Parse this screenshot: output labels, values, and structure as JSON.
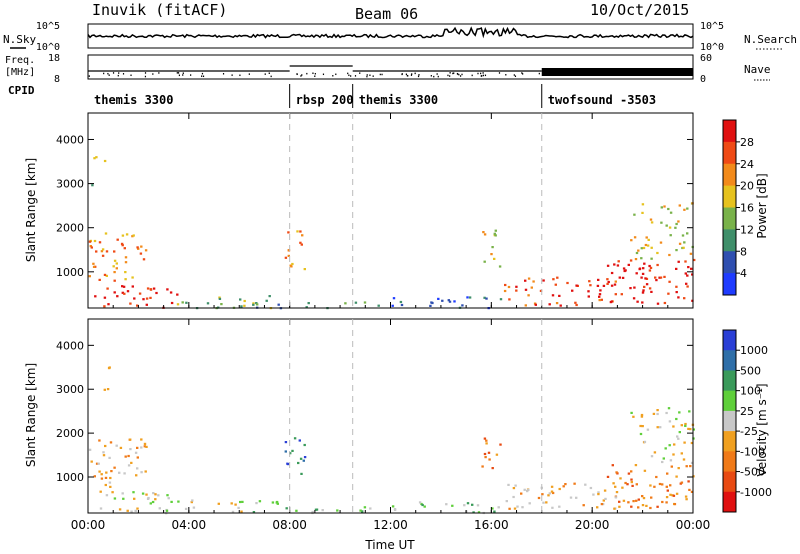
{
  "header": {
    "station": "Inuvik (fitACF)",
    "beam": "Beam 06",
    "date": "10/Oct/2015"
  },
  "noise_panel": {
    "left_label": "N.Sky",
    "left_ticks": [
      "10^5",
      "10^0"
    ],
    "right_label": "N.Search",
    "right_ticks": [
      "10^5",
      "10^0"
    ]
  },
  "freq_panel": {
    "left_label_1": "Freq.",
    "left_label_2": "[MHz]",
    "left_ticks": [
      "18",
      "8"
    ],
    "right_label": "Nave",
    "right_ticks": [
      "60",
      "0"
    ]
  },
  "cpid": {
    "label": "CPID",
    "modes": [
      {
        "name": "themis 3300",
        "start_hour": 0
      },
      {
        "name": "rbsp 200",
        "start_hour": 8
      },
      {
        "name": "themis 3300",
        "start_hour": 10.5
      },
      {
        "name": "twofsound -3503",
        "start_hour": 18
      }
    ]
  },
  "chart_data": [
    {
      "type": "heatmap",
      "name": "power",
      "ylabel": "Slant Range [km]",
      "xlim": [
        0,
        24
      ],
      "ylim": [
        180,
        4600
      ],
      "yticks": [
        "1000",
        "2000",
        "3000",
        "4000"
      ],
      "colorbar_label": "Power [dB]",
      "colorbar_ticks": [
        "4",
        "8",
        "12",
        "16",
        "20",
        "24",
        "28"
      ],
      "colors": [
        "#1f3cff",
        "#2f4fb0",
        "#3f8f6a",
        "#79b24a",
        "#e6c21e",
        "#f28a1a",
        "#ef4a15",
        "#e01010"
      ]
    },
    {
      "type": "heatmap",
      "name": "velocity",
      "ylabel": "Slant Range [km]",
      "xlabel": "Time UT",
      "xlim": [
        0,
        24
      ],
      "ylim": [
        180,
        4600
      ],
      "xticks": [
        "00:00",
        "04:00",
        "08:00",
        "12:00",
        "16:00",
        "20:00",
        "00:00"
      ],
      "yticks": [
        "1000",
        "2000",
        "3000",
        "4000"
      ],
      "colorbar_label": "Velocity [m s⁻¹]",
      "colorbar_ticks": [
        "1000",
        "500",
        "100",
        "25",
        "-25",
        "-100",
        "-500",
        "-1000"
      ],
      "colors": [
        "#2a3fd6",
        "#2f6fa8",
        "#3a9a5a",
        "#5fcf3a",
        "#c8c8c8",
        "#f0a020",
        "#f07a18",
        "#e84a12",
        "#e01010"
      ]
    }
  ]
}
